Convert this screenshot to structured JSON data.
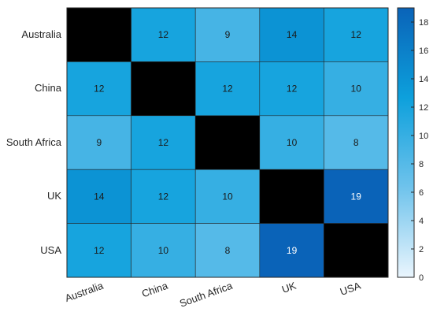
{
  "chart_data": {
    "type": "heatmap",
    "x_categories": [
      "Australia",
      "China",
      "South Africa",
      "UK",
      "USA"
    ],
    "y_categories": [
      "Australia",
      "China",
      "South Africa",
      "UK",
      "USA"
    ],
    "values": [
      [
        null,
        12,
        9,
        14,
        12
      ],
      [
        12,
        null,
        12,
        12,
        10
      ],
      [
        9,
        12,
        null,
        10,
        8
      ],
      [
        14,
        12,
        10,
        null,
        19
      ],
      [
        12,
        10,
        8,
        19,
        null
      ]
    ],
    "missing_color": "#000000",
    "colormap": [
      "#eaf5fd",
      "#6fc3ec",
      "#0da0dc",
      "#0a63b8"
    ],
    "colorbar": {
      "range": [
        0,
        19
      ],
      "ticks": [
        0,
        2,
        4,
        6,
        8,
        10,
        12,
        14,
        16,
        18
      ],
      "tick_labels": [
        "0",
        "2",
        "4",
        "6",
        "8",
        "10",
        "12",
        "14",
        "16",
        "18"
      ]
    },
    "x_tick_rotation_deg": 20,
    "title": "",
    "xlabel": "",
    "ylabel": ""
  }
}
